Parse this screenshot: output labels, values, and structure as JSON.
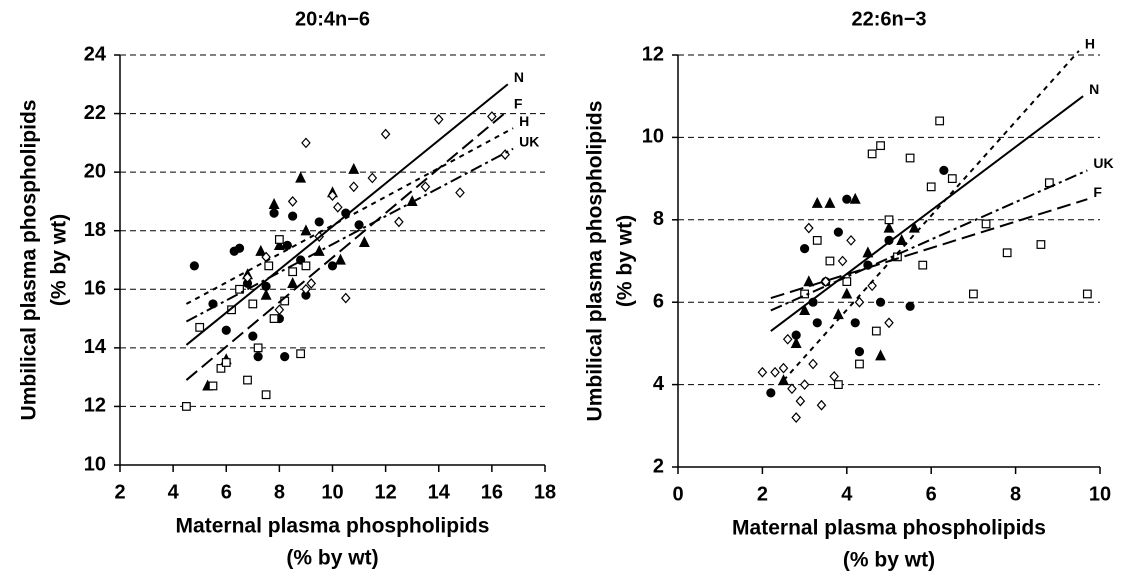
{
  "chart_data": [
    {
      "type": "scatter",
      "title": "20:4n−6",
      "xlabel": [
        "Maternal plasma phospholipids",
        "(% by wt)"
      ],
      "ylabel": [
        "Umbilical plasma phospholipids",
        "(% by wt)"
      ],
      "xlim": [
        2,
        18
      ],
      "xticks": [
        2,
        4,
        6,
        8,
        10,
        12,
        14,
        16,
        18
      ],
      "ylim": [
        10,
        24
      ],
      "yticks": [
        10,
        12,
        14,
        16,
        18,
        20,
        22,
        24
      ],
      "grid": true,
      "color": "#000000",
      "series": [
        {
          "name": "N",
          "marker": "circle",
          "filled": true,
          "dash": "solid",
          "x": [
            4.8,
            5.5,
            6.0,
            6.3,
            6.5,
            7.0,
            7.2,
            7.5,
            7.8,
            8.0,
            8.3,
            8.5,
            8.8,
            9.0,
            9.5,
            10.0,
            10.5,
            11.0,
            6.8,
            8.2
          ],
          "values": [
            16.8,
            15.5,
            14.6,
            17.3,
            17.4,
            14.4,
            13.7,
            16.1,
            18.6,
            15.0,
            17.5,
            18.5,
            17.0,
            15.8,
            18.3,
            16.8,
            18.6,
            18.2,
            16.2,
            13.7
          ],
          "fit": {
            "x": [
              4.5,
              16.6
            ],
            "y": [
              14.1,
              23.0
            ]
          }
        },
        {
          "name": "F",
          "marker": "triangle",
          "filled": true,
          "dash": "long",
          "x": [
            5.3,
            6.0,
            6.8,
            7.3,
            7.8,
            8.0,
            8.5,
            8.8,
            9.0,
            9.5,
            10.0,
            10.3,
            10.8,
            11.2,
            13.0,
            7.5
          ],
          "values": [
            12.7,
            13.6,
            16.5,
            17.3,
            18.9,
            17.5,
            16.2,
            19.8,
            18.0,
            17.3,
            19.3,
            17.0,
            20.1,
            17.6,
            19.0,
            15.8
          ],
          "fit": {
            "x": [
              4.5,
              16.6
            ],
            "y": [
              12.9,
              22.1
            ]
          }
        },
        {
          "name": "H",
          "marker": "square",
          "filled": false,
          "dash": "short",
          "x": [
            4.5,
            5.0,
            5.5,
            5.8,
            6.0,
            6.5,
            6.8,
            7.2,
            7.5,
            7.8,
            8.0,
            8.2,
            8.5,
            8.8,
            9.0,
            7.0,
            7.6,
            6.2
          ],
          "values": [
            12.0,
            14.7,
            12.7,
            13.3,
            13.5,
            16.0,
            12.9,
            14.0,
            12.4,
            15.0,
            17.7,
            15.6,
            16.6,
            13.8,
            16.8,
            15.5,
            16.8,
            15.3
          ],
          "fit": {
            "x": [
              4.5,
              16.8
            ],
            "y": [
              15.5,
              21.5
            ]
          }
        },
        {
          "name": "UK",
          "marker": "diamond",
          "filled": false,
          "dash": "dashdot",
          "x": [
            6.8,
            7.5,
            8.0,
            8.5,
            9.0,
            9.2,
            9.5,
            10.0,
            10.5,
            10.8,
            11.5,
            12.0,
            12.5,
            13.5,
            14.0,
            14.8,
            16.0,
            16.5,
            10.2,
            9.0
          ],
          "values": [
            16.4,
            17.1,
            15.3,
            19.0,
            21.0,
            16.2,
            17.8,
            19.2,
            15.7,
            19.5,
            19.8,
            21.3,
            18.3,
            19.5,
            21.8,
            19.3,
            21.9,
            20.6,
            18.8,
            16.0
          ],
          "fit": {
            "x": [
              4.5,
              16.8
            ],
            "y": [
              14.9,
              20.8
            ]
          }
        }
      ]
    },
    {
      "type": "scatter",
      "title": "22:6n−3",
      "xlabel": [
        "Maternal plasma phospholipids",
        "(% by wt)"
      ],
      "ylabel": [
        "Umbilical plasma phospholipids",
        "(% by wt)"
      ],
      "xlim": [
        0,
        10
      ],
      "xticks": [
        0,
        2,
        4,
        6,
        8,
        10
      ],
      "ylim": [
        2,
        12
      ],
      "yticks": [
        2,
        4,
        6,
        8,
        10,
        12
      ],
      "grid": true,
      "color": "#000000",
      "series": [
        {
          "name": "N",
          "marker": "circle",
          "filled": true,
          "dash": "solid",
          "x": [
            2.2,
            2.8,
            3.0,
            3.2,
            3.5,
            3.8,
            4.0,
            4.2,
            4.5,
            4.8,
            5.0,
            5.5,
            6.3,
            3.3,
            4.3
          ],
          "values": [
            3.8,
            5.2,
            7.3,
            6.0,
            6.5,
            7.7,
            8.5,
            5.5,
            6.9,
            6.0,
            7.5,
            5.9,
            9.2,
            5.5,
            4.8
          ],
          "fit": {
            "x": [
              2.2,
              9.6
            ],
            "y": [
              5.3,
              11.0
            ]
          }
        },
        {
          "name": "F",
          "marker": "triangle",
          "filled": true,
          "dash": "long",
          "x": [
            2.5,
            2.8,
            3.1,
            3.3,
            3.6,
            3.8,
            4.2,
            4.5,
            4.8,
            5.0,
            5.3,
            5.6,
            3.0,
            4.0
          ],
          "values": [
            4.1,
            5.0,
            6.5,
            8.4,
            8.4,
            5.7,
            8.5,
            7.2,
            4.7,
            7.8,
            7.5,
            7.8,
            5.8,
            6.2
          ],
          "fit": {
            "x": [
              2.2,
              9.7
            ],
            "y": [
              6.1,
              8.5
            ]
          }
        },
        {
          "name": "H",
          "marker": "square",
          "filled": false,
          "dash": "short",
          "x": [
            3.0,
            3.3,
            3.6,
            4.0,
            4.3,
            4.6,
            4.8,
            5.0,
            5.2,
            5.5,
            5.8,
            6.0,
            6.2,
            6.5,
            7.0,
            7.3,
            7.8,
            8.6,
            8.8,
            9.7,
            4.7,
            3.8
          ],
          "values": [
            6.2,
            7.5,
            7.0,
            6.5,
            4.5,
            9.6,
            9.8,
            8.0,
            7.1,
            9.5,
            6.9,
            8.8,
            10.4,
            9.0,
            6.2,
            7.9,
            7.2,
            7.4,
            8.9,
            6.2,
            5.3,
            4.0
          ],
          "fit": {
            "x": [
              2.5,
              9.5
            ],
            "y": [
              4.1,
              12.1
            ]
          }
        },
        {
          "name": "UK",
          "marker": "diamond",
          "filled": false,
          "dash": "dashdot",
          "x": [
            2.0,
            2.3,
            2.5,
            2.7,
            2.8,
            2.9,
            3.0,
            3.2,
            3.4,
            3.5,
            3.7,
            3.9,
            4.1,
            4.3,
            4.6,
            5.0,
            3.1,
            2.6
          ],
          "values": [
            4.3,
            4.3,
            4.4,
            3.9,
            3.2,
            3.6,
            4.0,
            4.5,
            3.5,
            6.5,
            4.2,
            7.0,
            7.5,
            6.0,
            6.4,
            5.5,
            7.8,
            5.1
          ],
          "fit": {
            "x": [
              2.2,
              9.7
            ],
            "y": [
              5.8,
              9.2
            ]
          }
        }
      ]
    }
  ]
}
